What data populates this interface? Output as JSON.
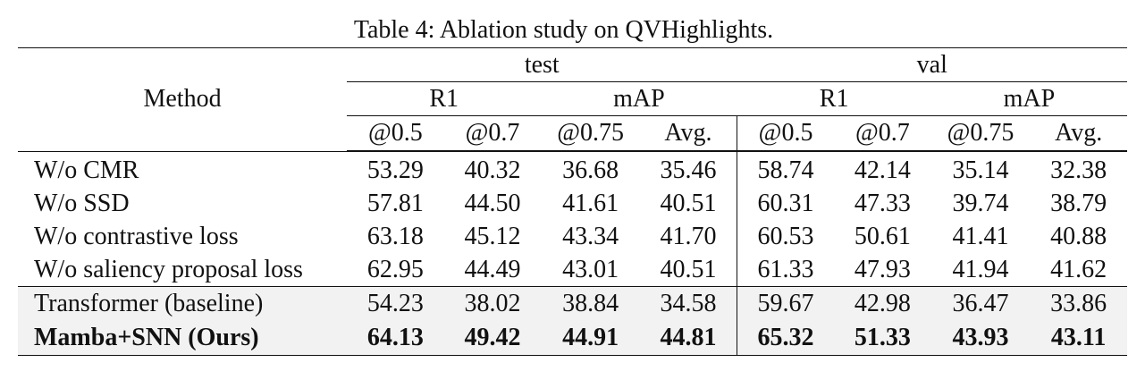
{
  "caption": "Table 4: Ablation study on QVHighlights.",
  "header": {
    "method": "Method",
    "splits": [
      "test",
      "val"
    ],
    "groups": [
      "R1",
      "mAP",
      "R1",
      "mAP"
    ],
    "metrics": [
      "@0.5",
      "@0.7",
      "@0.75",
      "Avg.",
      "@0.5",
      "@0.7",
      "@0.75",
      "Avg."
    ]
  },
  "rows": [
    {
      "method": "W/o CMR",
      "values": [
        "53.29",
        "40.32",
        "36.68",
        "35.46",
        "58.74",
        "42.14",
        "35.14",
        "32.38"
      ]
    },
    {
      "method": "W/o SSD",
      "values": [
        "57.81",
        "44.50",
        "41.61",
        "40.51",
        "60.31",
        "47.33",
        "39.74",
        "38.79"
      ]
    },
    {
      "method": "W/o contrastive loss",
      "values": [
        "63.18",
        "45.12",
        "43.34",
        "41.70",
        "60.53",
        "50.61",
        "41.41",
        "40.88"
      ]
    },
    {
      "method": "W/o saliency proposal loss",
      "values": [
        "62.95",
        "44.49",
        "43.01",
        "40.51",
        "61.33",
        "47.93",
        "41.94",
        "41.62"
      ]
    },
    {
      "method": "Transformer (baseline)",
      "values": [
        "54.23",
        "38.02",
        "38.84",
        "34.58",
        "59.67",
        "42.98",
        "36.47",
        "33.86"
      ]
    },
    {
      "method": "Mamba+SNN (Ours)",
      "values": [
        "64.13",
        "49.42",
        "44.91",
        "44.81",
        "65.32",
        "51.33",
        "43.93",
        "43.11"
      ]
    }
  ],
  "colors": {
    "shaded_background": "#f2f2f2",
    "rule": "#111111"
  }
}
